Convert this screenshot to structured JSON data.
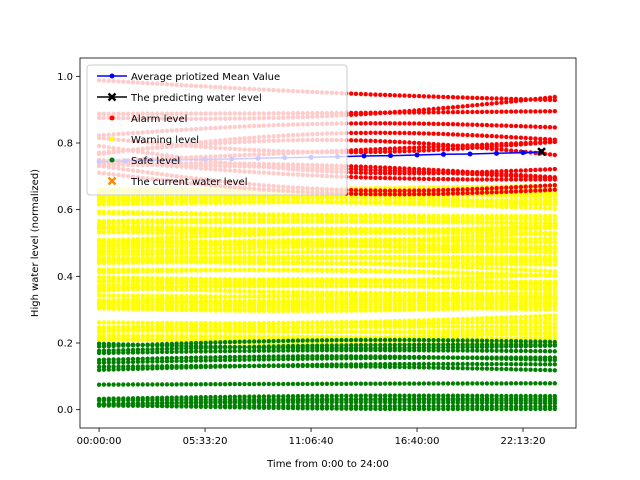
{
  "chart_data": {
    "type": "scatter",
    "title": "",
    "xlabel": "Time from 0:00 to 24:00",
    "ylabel": "High water level (normalized)",
    "x_unit": "seconds since 00:00:00",
    "xlim": [
      -3600,
      90000
    ],
    "ylim": [
      -0.055,
      1.055
    ],
    "x_ticks": [
      0,
      20000,
      40000,
      60000,
      80000
    ],
    "x_tick_labels": [
      "00:00:00",
      "05:33:20",
      "11:06:40",
      "16:40:00",
      "22:13:20"
    ],
    "y_ticks": [
      0.0,
      0.2,
      0.4,
      0.6,
      0.8,
      1.0
    ],
    "y_tick_labels": [
      "0.0",
      "0.2",
      "0.4",
      "0.6",
      "0.8",
      "1.0"
    ],
    "grid": false,
    "legend_position": "top-left",
    "colors": {
      "mean": "#0000ff",
      "predict": "#000000",
      "alarm": "#ff0000",
      "warning": "#ffff00",
      "safe": "#008000",
      "current": "#ff8c00"
    },
    "series": [
      {
        "name": "Average priotized Mean Value",
        "kind": "line-marker",
        "color": "#0000ff",
        "x": [
          0,
          5000,
          10000,
          15000,
          20000,
          25000,
          30000,
          35000,
          40000,
          45000,
          50000,
          55000,
          60000,
          65000,
          70000,
          75000,
          80000,
          83500
        ],
        "y": [
          0.744,
          0.746,
          0.748,
          0.749,
          0.751,
          0.752,
          0.754,
          0.756,
          0.757,
          0.759,
          0.761,
          0.762,
          0.764,
          0.766,
          0.767,
          0.769,
          0.771,
          0.774
        ]
      },
      {
        "name": "The predicting water level",
        "kind": "x-marker",
        "color": "#000000",
        "x": [
          83500
        ],
        "y": [
          0.774
        ]
      },
      {
        "name": "Alarm level",
        "kind": "scatter-bands",
        "color": "#ff0000",
        "range_y": [
          0.7,
          1.0
        ],
        "x_range": [
          0,
          86000
        ]
      },
      {
        "name": "Warning level",
        "kind": "scatter-bands",
        "color": "#ffff00",
        "range_y": [
          0.2,
          0.7
        ],
        "x_range": [
          0,
          86000
        ]
      },
      {
        "name": "Safe level",
        "kind": "scatter-bands",
        "color": "#008000",
        "range_y": [
          0.0,
          0.2
        ],
        "x_range": [
          0,
          86000
        ]
      },
      {
        "name": "The current water level",
        "kind": "x-marker",
        "color": "#ff8c00",
        "x": [],
        "y": []
      }
    ]
  }
}
